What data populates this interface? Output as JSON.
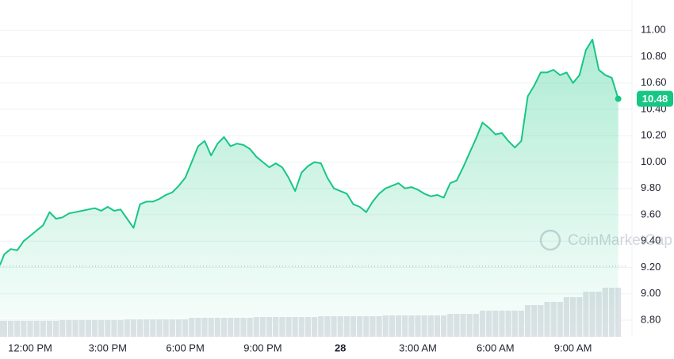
{
  "chart_data": {
    "type": "area",
    "x": [
      null,
      null,
      null,
      null,
      null,
      "12:00 PM",
      null,
      null,
      null,
      null,
      null,
      null,
      null,
      null,
      null,
      null,
      null,
      "3:00 PM",
      null,
      null,
      null,
      null,
      null,
      null,
      null,
      null,
      null,
      null,
      null,
      "6:00 PM",
      null,
      null,
      null,
      null,
      null,
      null,
      null,
      null,
      null,
      null,
      null,
      "9:00 PM",
      null,
      null,
      null,
      null,
      null,
      null,
      null,
      null,
      null,
      null,
      null,
      "28",
      null,
      null,
      null,
      null,
      null,
      null,
      null,
      null,
      null,
      null,
      null,
      "3:00 AM",
      null,
      null,
      null,
      null,
      null,
      null,
      null,
      null,
      null,
      null,
      null,
      "6:00 AM",
      null,
      null,
      null,
      null,
      null,
      null,
      null,
      null,
      null,
      null,
      null,
      "9:00 AM",
      null,
      null,
      null,
      null,
      null,
      null,
      null
    ],
    "series": [
      {
        "color": "#16c784",
        "values": [
          9.22,
          9.3,
          9.34,
          9.33,
          9.4,
          9.44,
          9.48,
          9.52,
          9.62,
          9.57,
          9.58,
          9.61,
          9.62,
          9.63,
          9.64,
          9.65,
          9.63,
          9.66,
          9.63,
          9.64,
          9.57,
          9.5,
          9.68,
          9.7,
          9.7,
          9.72,
          9.75,
          9.77,
          9.82,
          9.88,
          10.0,
          10.12,
          10.16,
          10.05,
          10.14,
          10.19,
          10.12,
          10.14,
          10.13,
          10.1,
          10.04,
          10.0,
          9.96,
          9.99,
          9.96,
          9.88,
          9.78,
          9.92,
          9.97,
          10.0,
          9.99,
          9.88,
          9.8,
          9.78,
          9.76,
          9.68,
          9.66,
          9.62,
          9.7,
          9.76,
          9.8,
          9.82,
          9.84,
          9.8,
          9.81,
          9.79,
          9.76,
          9.74,
          9.75,
          9.73,
          9.84,
          9.86,
          9.96,
          10.07,
          10.18,
          10.3,
          10.26,
          10.21,
          10.22,
          10.16,
          10.11,
          10.16,
          10.5,
          10.58,
          10.68,
          10.68,
          10.7,
          10.66,
          10.68,
          10.6,
          10.66,
          10.85,
          10.93,
          10.7,
          10.66,
          10.64,
          10.48
        ]
      }
    ],
    "volume": {
      "color": "#dfe2e7",
      "ylim": [
        0,
        100
      ],
      "values": [
        20,
        20,
        20,
        20,
        20,
        20,
        20,
        20,
        20,
        20,
        21,
        21,
        21,
        21,
        21,
        21,
        21,
        21,
        21,
        21,
        22,
        22,
        22,
        22,
        22,
        22,
        22,
        22,
        22,
        22,
        24,
        24,
        24,
        24,
        24,
        24,
        24,
        24,
        24,
        24,
        25,
        25,
        25,
        25,
        25,
        25,
        25,
        25,
        25,
        25,
        26,
        26,
        26,
        26,
        26,
        26,
        26,
        26,
        26,
        26,
        27,
        27,
        27,
        27,
        27,
        27,
        27,
        27,
        27,
        27,
        29,
        29,
        29,
        29,
        29,
        33,
        33,
        33,
        33,
        33,
        33,
        33,
        40,
        40,
        40,
        44,
        44,
        44,
        50,
        50,
        50,
        57,
        57,
        57,
        62,
        62,
        62
      ]
    },
    "current_label": "10.48",
    "baseline": 9.21,
    "ylim": [
      8.7,
      11.23
    ],
    "yticks": [
      {
        "value": 8.8,
        "label": "8.80"
      },
      {
        "value": 9.0,
        "label": "9.00"
      },
      {
        "value": 9.2,
        "label": "9.20"
      },
      {
        "value": 9.4,
        "label": "9.40"
      },
      {
        "value": 9.6,
        "label": "9.60"
      },
      {
        "value": 9.8,
        "label": "9.80"
      },
      {
        "value": 10.0,
        "label": "10.00"
      },
      {
        "value": 10.2,
        "label": "10.20"
      },
      {
        "value": 10.4,
        "label": "10.40"
      },
      {
        "value": 10.6,
        "label": "10.60"
      },
      {
        "value": 10.8,
        "label": "10.80"
      },
      {
        "value": 11.0,
        "label": "11.00"
      }
    ],
    "grid": true,
    "watermark": "CoinMarketCap"
  }
}
